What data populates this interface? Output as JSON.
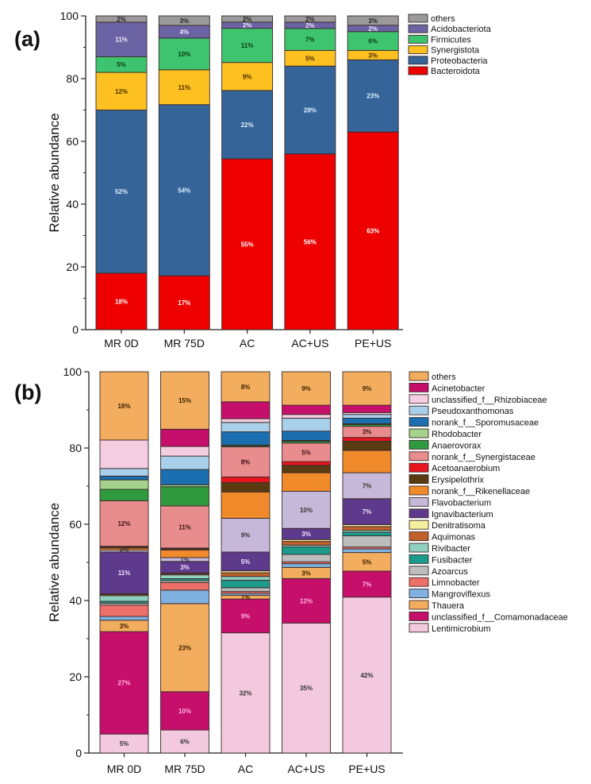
{
  "chart_data": [
    {
      "type": "bar",
      "stacked": true,
      "panel_label": "(a)",
      "title": "",
      "xlabel": "",
      "ylabel": "Relative abundance",
      "ylim": [
        0,
        100
      ],
      "yticks": [
        0,
        20,
        40,
        60,
        80,
        100
      ],
      "categories": [
        "MR 0D",
        "MR 75D",
        "AC",
        "AC+US",
        "PE+US"
      ],
      "legend_position": "right",
      "series": [
        {
          "name": "Bacteroidota",
          "color": "#ee0000",
          "values": [
            18,
            17,
            55,
            56,
            63
          ],
          "labels": [
            "18%",
            "17%",
            "55%",
            "56%",
            "63%"
          ],
          "label_color": "#ffffff"
        },
        {
          "name": "Proteobacteria",
          "color": "#356598",
          "values": [
            52,
            54,
            22,
            28,
            23
          ],
          "labels": [
            "52%",
            "54%",
            "22%",
            "28%",
            "23%"
          ],
          "label_color": "#dff0ff"
        },
        {
          "name": "Synergistota",
          "color": "#fcc020",
          "values": [
            12,
            11,
            9,
            5,
            3
          ],
          "labels": [
            "12%",
            "11%",
            "9%",
            "5%",
            "3%"
          ],
          "label_color": "#4a2a00"
        },
        {
          "name": "Firmicutes",
          "color": "#3ec46e",
          "values": [
            5,
            10,
            11,
            7,
            6
          ],
          "labels": [
            "5%",
            "10%",
            "11%",
            "7%",
            "6%"
          ],
          "label_color": "#0a3a10"
        },
        {
          "name": "Acidobacteriota",
          "color": "#6c63a4",
          "values": [
            11,
            4,
            2,
            2,
            2
          ],
          "labels": [
            "11%",
            "4%",
            "2%",
            "2%",
            "2%"
          ],
          "label_color": "#f0eaff"
        },
        {
          "name": "others",
          "color": "#9a9a9a",
          "values": [
            2,
            3,
            2,
            2,
            3
          ],
          "labels": [
            "2%",
            "3%",
            "2%",
            "2%",
            "3%"
          ],
          "label_color": "#222222"
        }
      ],
      "legend_order": [
        "others",
        "Acidobacteriota",
        "Firmicutes",
        "Synergistota",
        "Proteobacteria",
        "Bacteroidota"
      ]
    },
    {
      "type": "bar",
      "stacked": true,
      "panel_label": "(b)",
      "title": "",
      "xlabel": "",
      "ylabel": "Relative abundance",
      "ylim": [
        0,
        100
      ],
      "yticks": [
        0,
        20,
        40,
        60,
        80,
        100
      ],
      "categories": [
        "MR 0D",
        "MR 75D",
        "AC",
        "AC+US",
        "PE+US"
      ],
      "legend_position": "right",
      "series": [
        {
          "name": "Lentimicrobium",
          "color": "#f3c9de",
          "values": [
            5,
            6,
            32,
            35,
            42
          ],
          "labels": [
            "5%",
            "6%",
            "32%",
            "35%",
            "42%"
          ],
          "label_color": "#333333"
        },
        {
          "name": "unclassified_f__Comamonadaceae",
          "color": "#c50f6b",
          "values": [
            27,
            10,
            9,
            12,
            7
          ],
          "labels": [
            "27%",
            "10%",
            "9%",
            "12%",
            "7%"
          ],
          "label_color": "#ffb6df"
        },
        {
          "name": "Thauera",
          "color": "#f3ad5e",
          "values": [
            3,
            23,
            1,
            3,
            5
          ],
          "labels": [
            "3%",
            "23%",
            "1%",
            "3%",
            "5%"
          ],
          "label_color": "#3a2000"
        },
        {
          "name": "Mangroviflexus",
          "color": "#7fb2e0",
          "values": [
            1,
            3.5,
            0.5,
            1,
            1
          ],
          "labels": [
            "",
            "",
            "",
            "",
            ""
          ]
        },
        {
          "name": "Limnobacter",
          "color": "#ec7068",
          "values": [
            3,
            2,
            0.5,
            0.5,
            0.5
          ],
          "labels": [
            "",
            "",
            "",
            "",
            ""
          ]
        },
        {
          "name": "Azoarcus",
          "color": "#bdbdbd",
          "values": [
            0.5,
            0.5,
            1,
            2,
            3
          ],
          "labels": [
            "",
            "",
            "",
            "",
            ""
          ]
        },
        {
          "name": "Fusibacter",
          "color": "#1c9a8a",
          "values": [
            0.5,
            0.5,
            2,
            2,
            1
          ],
          "labels": [
            "",
            "",
            "",
            "",
            ""
          ]
        },
        {
          "name": "Rivibacter",
          "color": "#8fd0c0",
          "values": [
            1.5,
            1,
            1,
            0.5,
            0.5
          ],
          "labels": [
            "",
            "",
            "",
            "",
            ""
          ]
        },
        {
          "name": "Aquimonas",
          "color": "#c0602a",
          "values": [
            0.3,
            0.3,
            1,
            1,
            1
          ],
          "labels": [
            "",
            "",
            "",
            "",
            ""
          ]
        },
        {
          "name": "Denitratisoma",
          "color": "#f5f0a0",
          "values": [
            0.2,
            0.2,
            0.5,
            0.5,
            0.5
          ],
          "labels": [
            "",
            "",
            "",
            "",
            ""
          ]
        },
        {
          "name": "Ignavibacterium",
          "color": "#5e3a8c",
          "values": [
            11,
            3,
            5,
            3,
            7
          ],
          "labels": [
            "11%",
            "3%",
            "5%",
            "3%",
            "7%"
          ],
          "label_color": "#f0e6ff"
        },
        {
          "name": "Flavobacterium",
          "color": "#c5b8d8",
          "values": [
            0.5,
            1,
            9,
            10,
            7
          ],
          "labels": [
            "",
            "1%",
            "9%",
            "10%",
            "7%"
          ],
          "label_color": "#333333"
        },
        {
          "name": "norank_f__Rikenellaceae",
          "color": "#f08a2a",
          "values": [
            0.5,
            2,
            7,
            5,
            6
          ],
          "labels": [
            "0%",
            "",
            "",
            "",
            ""
          ],
          "label_color": "#333333"
        },
        {
          "name": "Erysipelothrix",
          "color": "#5a3a10",
          "values": [
            0.3,
            0.3,
            2.5,
            2,
            2.5
          ],
          "labels": [
            "",
            "",
            "",
            "",
            ""
          ]
        },
        {
          "name": "Acetoanaerobium",
          "color": "#e8141e",
          "values": [
            0.2,
            0.2,
            1.5,
            1,
            1
          ],
          "labels": [
            "",
            "",
            "",
            "",
            ""
          ]
        },
        {
          "name": "norank_f__Synergistaceae",
          "color": "#e98c8e",
          "values": [
            12,
            11,
            8,
            5,
            3
          ],
          "labels": [
            "12%",
            "11%",
            "8%",
            "5%",
            "3%"
          ],
          "label_color": "#3a1010"
        },
        {
          "name": "Anaerovorax",
          "color": "#2f9a3e",
          "values": [
            3,
            5,
            0.3,
            0.5,
            0.5
          ],
          "labels": [
            "",
            "",
            "",
            "",
            ""
          ]
        },
        {
          "name": "Rhodobacter",
          "color": "#a6d38c",
          "values": [
            2.5,
            0.5,
            0.2,
            0.2,
            0.2
          ],
          "labels": [
            "",
            "",
            "",
            "",
            ""
          ]
        },
        {
          "name": "norank_f__Sporomusaceae",
          "color": "#1b6fb0",
          "values": [
            1,
            4,
            3.5,
            2.5,
            1.5
          ],
          "labels": [
            "",
            "",
            "",
            "",
            ""
          ]
        },
        {
          "name": "Pseudoxanthomonas",
          "color": "#a9d0ea",
          "values": [
            2,
            3.5,
            2.5,
            3.5,
            1
          ],
          "labels": [
            "",
            "",
            "",
            "",
            ""
          ]
        },
        {
          "name": "unclassified_f__Rhizobiaceae",
          "color": "#f4cde0",
          "values": [
            7.5,
            2.5,
            1,
            1,
            0.5
          ],
          "labels": [
            "",
            "",
            "",
            "",
            ""
          ]
        },
        {
          "name": "Acinetobacter",
          "color": "#c50f6b",
          "values": [
            0,
            4.5,
            4.5,
            2.5,
            2
          ],
          "labels": [
            "",
            "",
            "",
            "",
            ""
          ]
        },
        {
          "name": "others",
          "color": "#f3ad5e",
          "values": [
            18,
            15,
            8,
            9,
            9
          ],
          "labels": [
            "18%",
            "15%",
            "8%",
            "9%",
            "9%"
          ],
          "label_color": "#3a2000"
        }
      ],
      "legend_order": [
        "others",
        "Acinetobacter",
        "unclassified_f__Rhizobiaceae",
        "Pseudoxanthomonas",
        "norank_f__Sporomusaceae",
        "Rhodobacter",
        "Anaerovorax",
        "norank_f__Synergistaceae",
        "Acetoanaerobium",
        "Erysipelothrix",
        "norank_f__Rikenellaceae",
        "Flavobacterium",
        "Ignavibacterium",
        "Denitratisoma",
        "Aquimonas",
        "Rivibacter",
        "Fusibacter",
        "Azoarcus",
        "Limnobacter",
        "Mangroviflexus",
        "Thauera",
        "unclassified_f__Comamonadaceae",
        "Lentimicrobium"
      ]
    }
  ]
}
